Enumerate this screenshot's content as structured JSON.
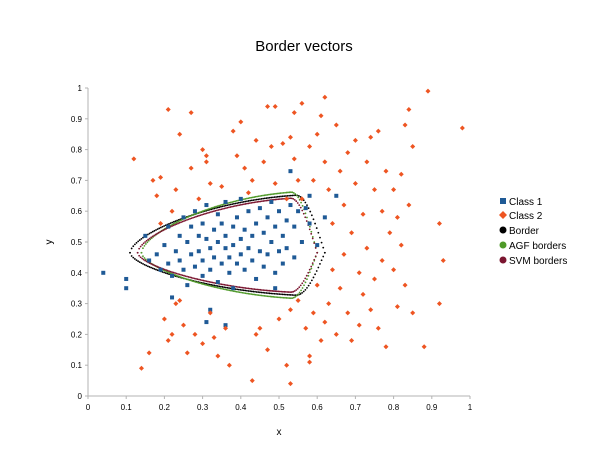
{
  "chart_data": {
    "type": "scatter",
    "title": "Border vectors",
    "xlabel": "x",
    "ylabel": "y",
    "xlim": [
      0,
      1
    ],
    "ylim": [
      0,
      1
    ],
    "xticks": [
      "0",
      "0.1",
      "0.2",
      "0.3",
      "0.4",
      "0.5",
      "0.6",
      "0.7",
      "0.8",
      "0.9",
      "1"
    ],
    "yticks": [
      "0",
      "0.1",
      "0.2",
      "0.3",
      "0.4",
      "0.5",
      "0.6",
      "0.7",
      "0.8",
      "0.9",
      "1"
    ],
    "grid": false,
    "legend_position": "right",
    "series": [
      {
        "name": "Class 1",
        "marker": "square",
        "color": "#1f5a96",
        "points": [
          [
            0.04,
            0.4
          ],
          [
            0.1,
            0.38
          ],
          [
            0.1,
            0.35
          ],
          [
            0.15,
            0.52
          ],
          [
            0.16,
            0.44
          ],
          [
            0.18,
            0.46
          ],
          [
            0.19,
            0.41
          ],
          [
            0.2,
            0.49
          ],
          [
            0.21,
            0.43
          ],
          [
            0.21,
            0.55
          ],
          [
            0.22,
            0.39
          ],
          [
            0.22,
            0.32
          ],
          [
            0.23,
            0.47
          ],
          [
            0.24,
            0.52
          ],
          [
            0.24,
            0.44
          ],
          [
            0.25,
            0.58
          ],
          [
            0.25,
            0.41
          ],
          [
            0.26,
            0.36
          ],
          [
            0.26,
            0.5
          ],
          [
            0.27,
            0.46
          ],
          [
            0.27,
            0.55
          ],
          [
            0.28,
            0.42
          ],
          [
            0.28,
            0.6
          ],
          [
            0.29,
            0.52
          ],
          [
            0.29,
            0.47
          ],
          [
            0.3,
            0.39
          ],
          [
            0.3,
            0.56
          ],
          [
            0.3,
            0.44
          ],
          [
            0.31,
            0.51
          ],
          [
            0.31,
            0.62
          ],
          [
            0.32,
            0.48
          ],
          [
            0.32,
            0.41
          ],
          [
            0.32,
            0.28
          ],
          [
            0.33,
            0.54
          ],
          [
            0.33,
            0.45
          ],
          [
            0.34,
            0.59
          ],
          [
            0.34,
            0.5
          ],
          [
            0.34,
            0.37
          ],
          [
            0.35,
            0.43
          ],
          [
            0.35,
            0.56
          ],
          [
            0.36,
            0.48
          ],
          [
            0.36,
            0.52
          ],
          [
            0.36,
            0.63
          ],
          [
            0.37,
            0.45
          ],
          [
            0.37,
            0.4
          ],
          [
            0.38,
            0.55
          ],
          [
            0.38,
            0.49
          ],
          [
            0.38,
            0.35
          ],
          [
            0.39,
            0.43
          ],
          [
            0.39,
            0.58
          ],
          [
            0.4,
            0.51
          ],
          [
            0.4,
            0.46
          ],
          [
            0.4,
            0.64
          ],
          [
            0.41,
            0.41
          ],
          [
            0.41,
            0.54
          ],
          [
            0.42,
            0.48
          ],
          [
            0.42,
            0.6
          ],
          [
            0.43,
            0.44
          ],
          [
            0.43,
            0.52
          ],
          [
            0.44,
            0.38
          ],
          [
            0.44,
            0.56
          ],
          [
            0.45,
            0.47
          ],
          [
            0.45,
            0.61
          ],
          [
            0.46,
            0.42
          ],
          [
            0.46,
            0.53
          ],
          [
            0.47,
            0.58
          ],
          [
            0.47,
            0.46
          ],
          [
            0.48,
            0.5
          ],
          [
            0.48,
            0.63
          ],
          [
            0.49,
            0.4
          ],
          [
            0.49,
            0.55
          ],
          [
            0.5,
            0.47
          ],
          [
            0.5,
            0.6
          ],
          [
            0.51,
            0.43
          ],
          [
            0.51,
            0.52
          ],
          [
            0.52,
            0.57
          ],
          [
            0.52,
            0.48
          ],
          [
            0.53,
            0.73
          ],
          [
            0.53,
            0.62
          ],
          [
            0.54,
            0.45
          ],
          [
            0.54,
            0.55
          ],
          [
            0.55,
            0.6
          ],
          [
            0.56,
            0.5
          ],
          [
            0.57,
            0.61
          ],
          [
            0.58,
            0.56
          ],
          [
            0.6,
            0.49
          ],
          [
            0.62,
            0.58
          ],
          [
            0.65,
            0.65
          ],
          [
            0.36,
            0.23
          ],
          [
            0.31,
            0.24
          ],
          [
            0.58,
            0.65
          ],
          [
            0.49,
            0.35
          ]
        ]
      },
      {
        "name": "Class 2",
        "marker": "diamond",
        "color": "#ee5522",
        "points": [
          [
            0.12,
            0.77
          ],
          [
            0.14,
            0.09
          ],
          [
            0.16,
            0.14
          ],
          [
            0.17,
            0.7
          ],
          [
            0.18,
            0.65
          ],
          [
            0.19,
            0.56
          ],
          [
            0.2,
            0.25
          ],
          [
            0.21,
            0.18
          ],
          [
            0.21,
            0.93
          ],
          [
            0.22,
            0.6
          ],
          [
            0.22,
            0.2
          ],
          [
            0.23,
            0.67
          ],
          [
            0.24,
            0.85
          ],
          [
            0.24,
            0.31
          ],
          [
            0.25,
            0.23
          ],
          [
            0.26,
            0.14
          ],
          [
            0.27,
            0.92
          ],
          [
            0.27,
            0.74
          ],
          [
            0.28,
            0.2
          ],
          [
            0.29,
            0.64
          ],
          [
            0.3,
            0.8
          ],
          [
            0.3,
            0.17
          ],
          [
            0.31,
            0.78
          ],
          [
            0.31,
            0.76
          ],
          [
            0.32,
            0.69
          ],
          [
            0.32,
            0.27
          ],
          [
            0.33,
            0.19
          ],
          [
            0.34,
            0.13
          ],
          [
            0.35,
            0.68
          ],
          [
            0.36,
            0.22
          ],
          [
            0.37,
            0.1
          ],
          [
            0.38,
            0.86
          ],
          [
            0.39,
            0.78
          ],
          [
            0.4,
            0.89
          ],
          [
            0.41,
            0.74
          ],
          [
            0.42,
            0.66
          ],
          [
            0.43,
            0.7
          ],
          [
            0.44,
            0.83
          ],
          [
            0.44,
            0.2
          ],
          [
            0.45,
            0.22
          ],
          [
            0.46,
            0.76
          ],
          [
            0.47,
            0.94
          ],
          [
            0.47,
            0.15
          ],
          [
            0.48,
            0.81
          ],
          [
            0.49,
            0.94
          ],
          [
            0.49,
            0.69
          ],
          [
            0.5,
            0.25
          ],
          [
            0.51,
            0.82
          ],
          [
            0.52,
            0.64
          ],
          [
            0.52,
            0.1
          ],
          [
            0.53,
            0.84
          ],
          [
            0.53,
            0.28
          ],
          [
            0.54,
            0.92
          ],
          [
            0.54,
            0.77
          ],
          [
            0.55,
            0.7
          ],
          [
            0.55,
            0.31
          ],
          [
            0.56,
            0.95
          ],
          [
            0.56,
            0.64
          ],
          [
            0.57,
            0.22
          ],
          [
            0.58,
            0.81
          ],
          [
            0.58,
            0.13
          ],
          [
            0.59,
            0.27
          ],
          [
            0.59,
            0.7
          ],
          [
            0.6,
            0.85
          ],
          [
            0.6,
            0.36
          ],
          [
            0.61,
            0.91
          ],
          [
            0.61,
            0.18
          ],
          [
            0.62,
            0.97
          ],
          [
            0.62,
            0.76
          ],
          [
            0.62,
            0.24
          ],
          [
            0.63,
            0.67
          ],
          [
            0.63,
            0.3
          ],
          [
            0.64,
            0.56
          ],
          [
            0.64,
            0.41
          ],
          [
            0.65,
            0.88
          ],
          [
            0.65,
            0.2
          ],
          [
            0.66,
            0.73
          ],
          [
            0.66,
            0.35
          ],
          [
            0.67,
            0.62
          ],
          [
            0.67,
            0.46
          ],
          [
            0.68,
            0.79
          ],
          [
            0.68,
            0.27
          ],
          [
            0.69,
            0.53
          ],
          [
            0.69,
            0.18
          ],
          [
            0.7,
            0.83
          ],
          [
            0.7,
            0.69
          ],
          [
            0.71,
            0.4
          ],
          [
            0.71,
            0.23
          ],
          [
            0.72,
            0.59
          ],
          [
            0.72,
            0.33
          ],
          [
            0.73,
            0.76
          ],
          [
            0.73,
            0.48
          ],
          [
            0.74,
            0.84
          ],
          [
            0.74,
            0.28
          ],
          [
            0.75,
            0.67
          ],
          [
            0.75,
            0.38
          ],
          [
            0.76,
            0.86
          ],
          [
            0.76,
            0.22
          ],
          [
            0.77,
            0.6
          ],
          [
            0.77,
            0.44
          ],
          [
            0.78,
            0.73
          ],
          [
            0.78,
            0.16
          ],
          [
            0.79,
            0.53
          ],
          [
            0.8,
            0.67
          ],
          [
            0.8,
            0.41
          ],
          [
            0.81,
            0.58
          ],
          [
            0.81,
            0.29
          ],
          [
            0.82,
            0.72
          ],
          [
            0.82,
            0.49
          ],
          [
            0.83,
            0.88
          ],
          [
            0.83,
            0.36
          ],
          [
            0.84,
            0.93
          ],
          [
            0.84,
            0.62
          ],
          [
            0.85,
            0.81
          ],
          [
            0.85,
            0.27
          ],
          [
            0.88,
            0.16
          ],
          [
            0.89,
            0.99
          ],
          [
            0.92,
            0.56
          ],
          [
            0.92,
            0.3
          ],
          [
            0.93,
            0.44
          ],
          [
            0.98,
            0.87
          ],
          [
            0.58,
            0.11
          ],
          [
            0.53,
            0.04
          ],
          [
            0.43,
            0.05
          ],
          [
            0.23,
            0.3
          ],
          [
            0.19,
            0.71
          ]
        ]
      },
      {
        "name": "Border",
        "marker": "circle",
        "color": "#000000"
      },
      {
        "name": "AGF borders",
        "marker": "circle",
        "color": "#4f9a29"
      },
      {
        "name": "SVM borders",
        "marker": "circle",
        "color": "#7b1530"
      }
    ]
  }
}
